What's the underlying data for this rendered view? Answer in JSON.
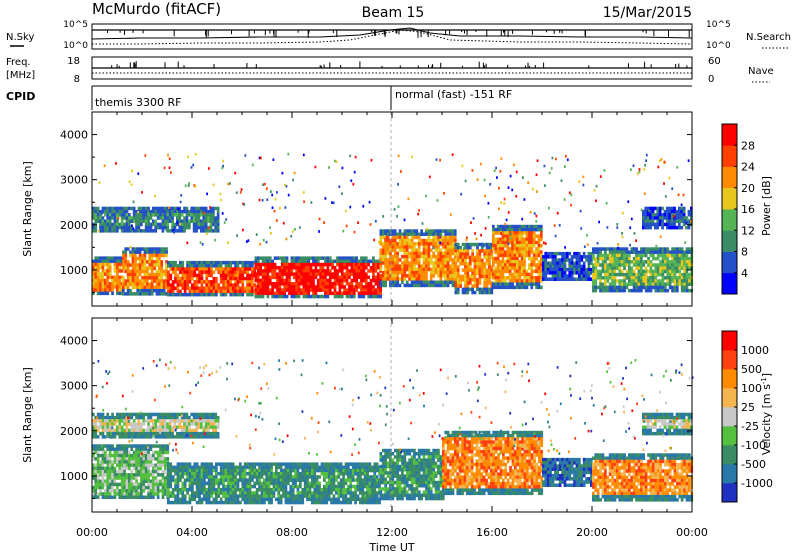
{
  "header": {
    "station": "McMurdo (fitACF)",
    "beam": "Beam 15",
    "date": "15/Mar/2015"
  },
  "strip_labels": {
    "nsky": "N.Sky",
    "nsearch": "N.Search",
    "freq": "Freq.",
    "freq_unit": "[MHz]",
    "nave": "Nave",
    "cpid": "CPID",
    "nsky_ticks": [
      "10^5",
      "10^0"
    ],
    "nsearch_ticks": [
      "10^5",
      "10^0"
    ],
    "freq_ticks": [
      "18",
      "8"
    ],
    "nave_ticks": [
      "60",
      "0"
    ],
    "cpid_modes": [
      "themis 3300 RF",
      "normal (fast) -151 RF"
    ]
  },
  "colorbars": {
    "power": {
      "title": "Power [dB]",
      "labels": [
        "28",
        "24",
        "20",
        "16",
        "12",
        "8",
        "4"
      ],
      "colors": [
        "#0000ff",
        "#2450c8",
        "#3a8c64",
        "#55b455",
        "#e8c81e",
        "#ff8c00",
        "#ff4000",
        "#ff0000"
      ]
    },
    "velocity": {
      "title": "Velocity [m s",
      "title_sup": "-1",
      "title_end": "]",
      "labels": [
        "1000",
        "500",
        "100",
        "25",
        "-25",
        "-100",
        "-500",
        "-1000"
      ],
      "colors": [
        "#2030c0",
        "#2878a8",
        "#3a8c64",
        "#55c040",
        "#c8c8c8",
        "#f4b450",
        "#ff8c00",
        "#ff4010",
        "#ff0000"
      ]
    }
  },
  "chart_data": [
    {
      "type": "heatmap",
      "title": "Power",
      "ylabel": "Slant Range [km]",
      "xlabel": "Time UT",
      "xlim": [
        0,
        24
      ],
      "ylim": [
        200,
        4500
      ],
      "x_ticks": [
        "00:00",
        "04:00",
        "08:00",
        "12:00",
        "16:00",
        "20:00",
        "00:00"
      ],
      "y_ticks": [
        1000,
        2000,
        3000,
        4000
      ],
      "bands": [
        {
          "t0": 0.0,
          "t1": 1.2,
          "r0": 450,
          "r1": 1300,
          "level": 5
        },
        {
          "t0": 1.2,
          "t1": 3.0,
          "r0": 450,
          "r1": 1500,
          "level": 5
        },
        {
          "t0": 3.0,
          "t1": 6.5,
          "r0": 420,
          "r1": 1200,
          "level": 6
        },
        {
          "t0": 6.5,
          "t1": 11.5,
          "r0": 380,
          "r1": 1300,
          "level": 7
        },
        {
          "t0": 11.5,
          "t1": 14.5,
          "r0": 650,
          "r1": 1900,
          "level": 5
        },
        {
          "t0": 14.5,
          "t1": 16.0,
          "r0": 500,
          "r1": 1600,
          "level": 5
        },
        {
          "t0": 16.0,
          "t1": 18.0,
          "r0": 600,
          "r1": 2000,
          "level": 5
        },
        {
          "t0": 18.0,
          "t1": 20.0,
          "r0": 800,
          "r1": 1400,
          "level": 1
        },
        {
          "t0": 20.0,
          "t1": 24.0,
          "r0": 550,
          "r1": 1500,
          "level": 3
        },
        {
          "t0": 0.0,
          "t1": 5.0,
          "r0": 1850,
          "r1": 2400,
          "level": 2
        },
        {
          "t0": 22.0,
          "t1": 24.0,
          "r0": 1950,
          "r1": 2400,
          "level": 1
        }
      ]
    },
    {
      "type": "heatmap",
      "title": "Velocity",
      "ylabel": "Slant Range [km]",
      "xlabel": "Time UT",
      "xlim": [
        0,
        24
      ],
      "ylim": [
        200,
        4500
      ],
      "x_ticks": [
        "00:00",
        "04:00",
        "08:00",
        "12:00",
        "16:00",
        "20:00",
        "00:00"
      ],
      "y_ticks": [
        1000,
        2000,
        3000,
        4000
      ],
      "bands": [
        {
          "t0": 0.0,
          "t1": 3.0,
          "r0": 500,
          "r1": 1700,
          "level": 3
        },
        {
          "t0": 3.0,
          "t1": 11.5,
          "r0": 400,
          "r1": 1300,
          "level": 2
        },
        {
          "t0": 11.5,
          "t1": 14.0,
          "r0": 500,
          "r1": 1600,
          "level": 2
        },
        {
          "t0": 14.0,
          "t1": 18.0,
          "r0": 600,
          "r1": 2000,
          "level": 6
        },
        {
          "t0": 18.0,
          "t1": 20.0,
          "r0": 800,
          "r1": 1400,
          "level": 1
        },
        {
          "t0": 20.0,
          "t1": 24.0,
          "r0": 500,
          "r1": 1500,
          "level": 6
        },
        {
          "t0": 0.0,
          "t1": 5.0,
          "r0": 1900,
          "r1": 2400,
          "level": 4
        },
        {
          "t0": 22.0,
          "t1": 24.0,
          "r0": 1950,
          "r1": 2400,
          "level": 4
        }
      ]
    }
  ]
}
